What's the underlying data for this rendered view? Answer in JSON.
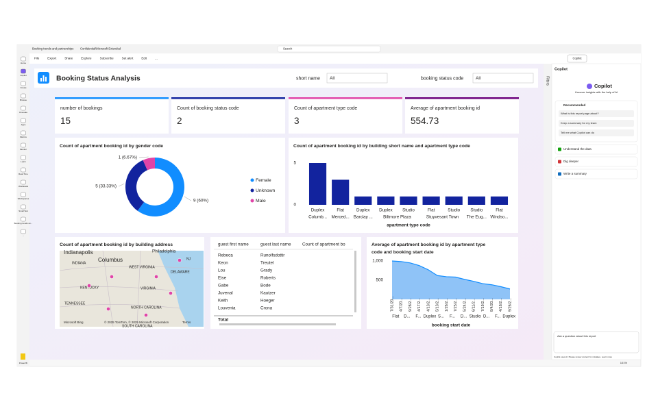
{
  "window": {
    "tab_title": "Booking trends and partnerships",
    "sensitivity": "Confidential\\Microsoft Extended",
    "search": "Search"
  },
  "toolbar": [
    "File",
    "Export",
    "Share",
    "Explore",
    "Subscribe",
    "Set alert",
    "Edit",
    "..."
  ],
  "copilot_button": "Copilot",
  "nav": [
    "Home",
    "Copilot",
    "Create",
    "Browse",
    "OneLake",
    "Apps",
    "Metrics",
    "Monitor",
    "Learn",
    "Real-Time",
    "Workloads",
    "Workspaces",
    "SmartTest",
    "Booking trends an...",
    "..."
  ],
  "nav_footer": "Power BI",
  "report": {
    "title": "Booking Status Analysis",
    "filters": [
      {
        "label": "short name",
        "value": "All"
      },
      {
        "label": "booking status code",
        "value": "All"
      }
    ],
    "filters_pane": "Filters",
    "cards": [
      {
        "label": "number of bookings",
        "value": 15,
        "color": "#118dff"
      },
      {
        "label": "Count of booking status code",
        "value": 2,
        "color": "#12239e"
      },
      {
        "label": "Count of apartment type code",
        "value": 3,
        "color": "#e044a7"
      },
      {
        "label": "Average of apartment booking id",
        "value": 554.73,
        "color": "#6b007b"
      }
    ]
  },
  "donut_chart": {
    "type": "donut",
    "title": "Count of apartment booking id by gender code",
    "categories": [
      "Female",
      "Unknown",
      "Male"
    ],
    "values": [
      9,
      5,
      1
    ],
    "value_labels": [
      "9 (60%)",
      "5 (33.33%)",
      "1 (6.67%)"
    ],
    "colors": [
      "#118dff",
      "#12239e",
      "#e044a7"
    ]
  },
  "bar_chart": {
    "type": "bar",
    "title": "Count of apartment booking id by building short name and apartment type code",
    "x_label": "apartment type code",
    "color": "#12239e",
    "ylim": [
      0,
      5
    ],
    "yticks": [
      0,
      5
    ],
    "groups": [
      {
        "name": "Columb...",
        "categories": [
          "Duplex"
        ],
        "values": [
          5
        ]
      },
      {
        "name": "Merced...",
        "categories": [
          "Flat"
        ],
        "values": [
          3
        ]
      },
      {
        "name": "Barclay ...",
        "categories": [
          "Duplex"
        ],
        "values": [
          1
        ]
      },
      {
        "name": "Biltmore Plaza",
        "categories": [
          "Duplex",
          "Studio"
        ],
        "values": [
          1,
          1
        ]
      },
      {
        "name": "Stuyvesant Town",
        "categories": [
          "Flat",
          "Studio"
        ],
        "values": [
          1,
          1
        ]
      },
      {
        "name": "The Eug...",
        "categories": [
          "Studio"
        ],
        "values": [
          1
        ]
      },
      {
        "name": "Windso...",
        "categories": [
          "Flat"
        ],
        "values": [
          1
        ]
      }
    ]
  },
  "map": {
    "title": "Count of apartment booking id by building address",
    "places": [
      "Indianapolis",
      "Columbus",
      "Philadelphia",
      "INDIANA",
      "WEST VIRGINIA",
      "DELAWARE",
      "NJ",
      "KENTUCKY",
      "VIRGINIA",
      "TENNESSEE",
      "NORTH CAROLINA",
      "SOUTH CAROLINA"
    ],
    "provider": "Microsoft Bing",
    "copyright": "© 2025 TomTom, © 2025 Microsoft Corporation",
    "terms": "Terms"
  },
  "table": {
    "columns": [
      "guest first name",
      "guest last name",
      "Count of apartment bo"
    ],
    "rows": [
      [
        "Rebeca",
        "Runolfsdottir"
      ],
      [
        "Keon",
        "Treutel"
      ],
      [
        "Lou",
        "Grady"
      ],
      [
        "Eise",
        "Roberts"
      ],
      [
        "Gabe",
        "Bode"
      ],
      [
        "Juvenal",
        "Kautzer"
      ],
      [
        "Keith",
        "Hoeger"
      ],
      [
        "Louvenia",
        "Crona"
      ]
    ],
    "total": "Total"
  },
  "area_chart": {
    "type": "area",
    "title": "Average of apartment booking id by apartment type code and booking start date",
    "x_label": "booking start date",
    "color": "#118dff",
    "ylim": [
      0,
      1000
    ],
    "yticks": [
      500,
      {
        "value": 1000,
        "label": "1,000"
      }
    ],
    "categories": [
      "7/31/20...",
      "4/7/20...",
      "9/28/2...",
      "4/17/2...",
      "4/13/2...",
      "5/13/2...",
      "1/26/2...",
      "7/25/2...",
      "5/24/2...",
      "6/11/2...",
      "7/19/2...",
      "8/4/20...",
      "4/18/2...",
      "9/26/2..."
    ],
    "groups": [
      "Flat",
      "D...",
      "F...",
      "Duplex",
      "S...",
      "F...",
      "D...",
      "Studio",
      "D...",
      "F...",
      "Duplex"
    ],
    "values": [
      1000,
      985,
      950,
      880,
      770,
      620,
      590,
      580,
      520,
      470,
      410,
      380,
      330,
      270
    ]
  },
  "copilot": {
    "header": "Copilot",
    "title": "Copilot",
    "subtitle": "Uncover insights with the help of AI",
    "recommended": "Recommended",
    "suggestions": [
      "What is this report page about?",
      "Keep a summary for my team",
      "Tell me what Copilot can do"
    ],
    "sections": [
      "Understand the data",
      "Dig deeper",
      "Write a summary"
    ],
    "input_placeholder": "Ask a question about this report",
    "disclaimer": "Copilot uses AI. Please review content for mistakes. Learn more"
  },
  "status": {
    "zoom": "101%"
  }
}
